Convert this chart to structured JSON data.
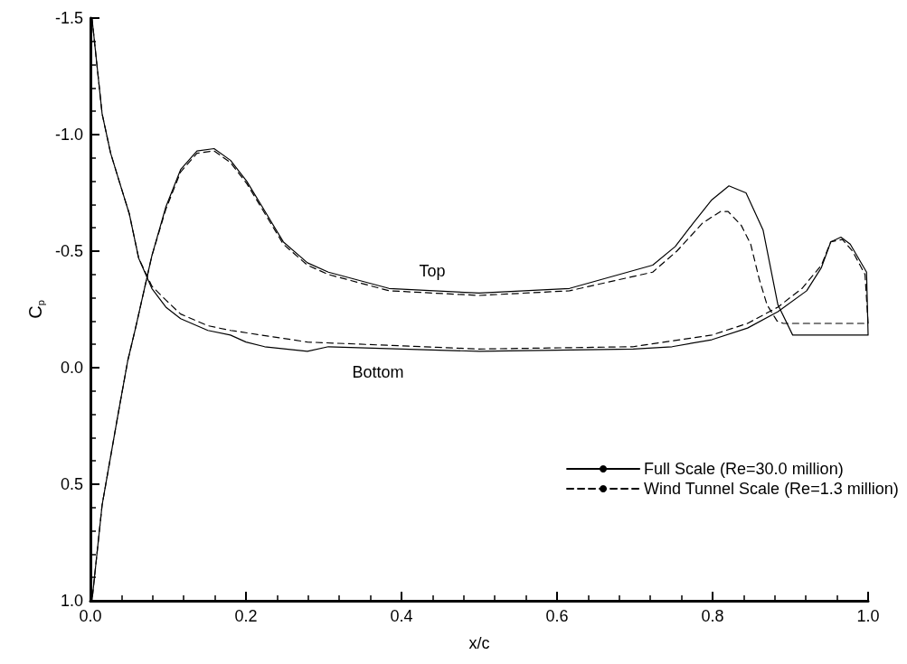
{
  "chart_data": {
    "type": "line",
    "xlabel": "x/c",
    "ylabel": "C$_{p}$",
    "xlim": [
      0,
      1
    ],
    "xticks": [
      {
        "value": 0,
        "label": "0.0"
      },
      {
        "value": 0.2,
        "label": "0.2"
      },
      {
        "value": 0.4,
        "label": "0.4"
      },
      {
        "value": 0.6,
        "label": "0.6"
      },
      {
        "value": 0.8,
        "label": "0.8"
      },
      {
        "value": 1,
        "label": "1.0"
      }
    ],
    "ylim": [
      1.0,
      -1.5
    ],
    "yticks": [
      {
        "value": -1.5,
        "label": "-1.5"
      },
      {
        "value": -1,
        "label": "-1.0"
      },
      {
        "value": -0.5,
        "label": "-0.5"
      },
      {
        "value": 0,
        "label": "0.0"
      },
      {
        "value": 0.5,
        "label": "0.5"
      },
      {
        "value": 1,
        "label": "1.0"
      }
    ],
    "grid": false,
    "legend": "bottom right",
    "marker": "none",
    "annotations": [
      "Top",
      "Bottom"
    ],
    "series": [
      {
        "name": "Full Scale (Re=30.0 million)",
        "color": "#000000",
        "line_style": "solid",
        "x": [
          0.002,
          0.015,
          0.026,
          0.037,
          0.05,
          0.062,
          0.079,
          0.097,
          0.116,
          0.151,
          0.18,
          0.2,
          0.224,
          0.279,
          0.306,
          0.5,
          0.698,
          0.748,
          0.799,
          0.845,
          0.884,
          0.921,
          0.94,
          0.952,
          0.965,
          0.977,
          0.998,
          1.0,
          0.903,
          0.884,
          0.865,
          0.843,
          0.821,
          0.799,
          0.775,
          0.752,
          0.723,
          0.616,
          0.5,
          0.384,
          0.306,
          0.279,
          0.248,
          0.221,
          0.201,
          0.18,
          0.159,
          0.137,
          0.116,
          0.097,
          0.079,
          0.058,
          0.048,
          0.035,
          0.025,
          0.015,
          0.002
        ],
        "values": [
          -1.5,
          -1.09,
          -0.92,
          -0.8,
          -0.66,
          -0.47,
          -0.34,
          -0.26,
          -0.21,
          -0.16,
          -0.14,
          -0.11,
          -0.09,
          -0.07,
          -0.09,
          -0.07,
          -0.08,
          -0.09,
          -0.12,
          -0.17,
          -0.24,
          -0.33,
          -0.43,
          -0.54,
          -0.56,
          -0.53,
          -0.41,
          -0.14,
          -0.14,
          -0.27,
          -0.59,
          -0.75,
          -0.78,
          -0.72,
          -0.62,
          -0.52,
          -0.44,
          -0.34,
          -0.32,
          -0.34,
          -0.41,
          -0.45,
          -0.54,
          -0.69,
          -0.8,
          -0.89,
          -0.94,
          -0.93,
          -0.85,
          -0.69,
          -0.48,
          -0.17,
          -0.03,
          0.21,
          0.4,
          0.59,
          1.0
        ]
      },
      {
        "name": "Wind Tunnel Scale (Re=1.3 million)",
        "color": "#000000",
        "line_style": "dashed",
        "x": [
          0.002,
          0.015,
          0.026,
          0.037,
          0.05,
          0.062,
          0.079,
          0.097,
          0.116,
          0.151,
          0.18,
          0.279,
          0.5,
          0.698,
          0.799,
          0.845,
          0.884,
          0.915,
          0.94,
          0.952,
          0.967,
          0.98,
          0.996,
          1.0,
          0.891,
          0.883,
          0.87,
          0.86,
          0.849,
          0.837,
          0.82,
          0.81,
          0.787,
          0.754,
          0.723,
          0.616,
          0.5,
          0.384,
          0.306,
          0.279,
          0.248,
          0.221,
          0.201,
          0.18,
          0.159,
          0.137,
          0.116,
          0.097,
          0.079,
          0.058,
          0.048,
          0.035,
          0.025,
          0.015,
          0.002
        ],
        "values": [
          -1.5,
          -1.09,
          -0.92,
          -0.8,
          -0.66,
          -0.47,
          -0.35,
          -0.29,
          -0.23,
          -0.18,
          -0.16,
          -0.11,
          -0.08,
          -0.09,
          -0.14,
          -0.19,
          -0.26,
          -0.34,
          -0.44,
          -0.54,
          -0.55,
          -0.5,
          -0.4,
          -0.19,
          -0.19,
          -0.2,
          -0.27,
          -0.38,
          -0.53,
          -0.61,
          -0.67,
          -0.67,
          -0.62,
          -0.5,
          -0.41,
          -0.33,
          -0.31,
          -0.33,
          -0.4,
          -0.44,
          -0.53,
          -0.68,
          -0.79,
          -0.88,
          -0.93,
          -0.92,
          -0.84,
          -0.68,
          -0.48,
          -0.17,
          -0.03,
          0.21,
          0.4,
          0.59,
          1.0
        ]
      }
    ]
  }
}
